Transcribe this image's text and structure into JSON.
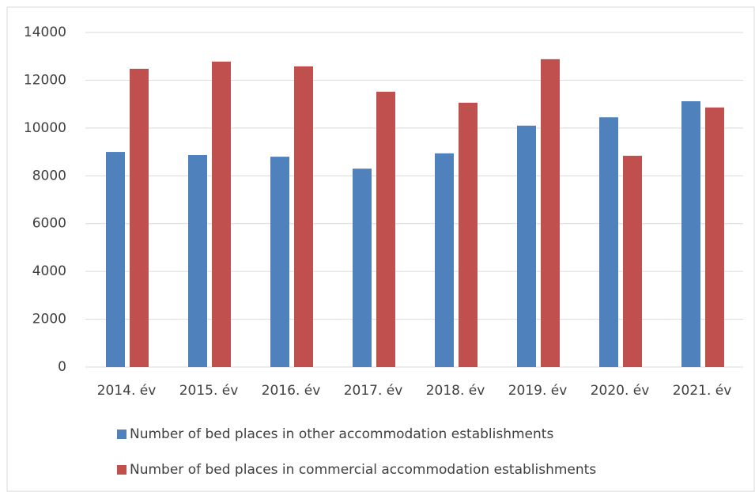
{
  "chart_data": {
    "type": "bar",
    "categories": [
      "2014. év",
      "2015. év",
      "2016. év",
      "2017. év",
      "2018. év",
      "2019. év",
      "2020. év",
      "2021. év"
    ],
    "series": [
      {
        "name": "Number of bed places in other accommodation establishments",
        "color": "#4f81bd",
        "values": [
          9000,
          8870,
          8800,
          8300,
          8940,
          10100,
          10450,
          11120
        ]
      },
      {
        "name": "Number of bed places in commercial accommodation establishments",
        "color": "#c0504d",
        "values": [
          12480,
          12780,
          12580,
          11520,
          11060,
          12880,
          8840,
          10860
        ]
      }
    ],
    "ylim": [
      0,
      14000
    ],
    "yticks": [
      0,
      2000,
      4000,
      6000,
      8000,
      10000,
      12000,
      14000
    ],
    "grid": true,
    "legend": "bottom"
  }
}
